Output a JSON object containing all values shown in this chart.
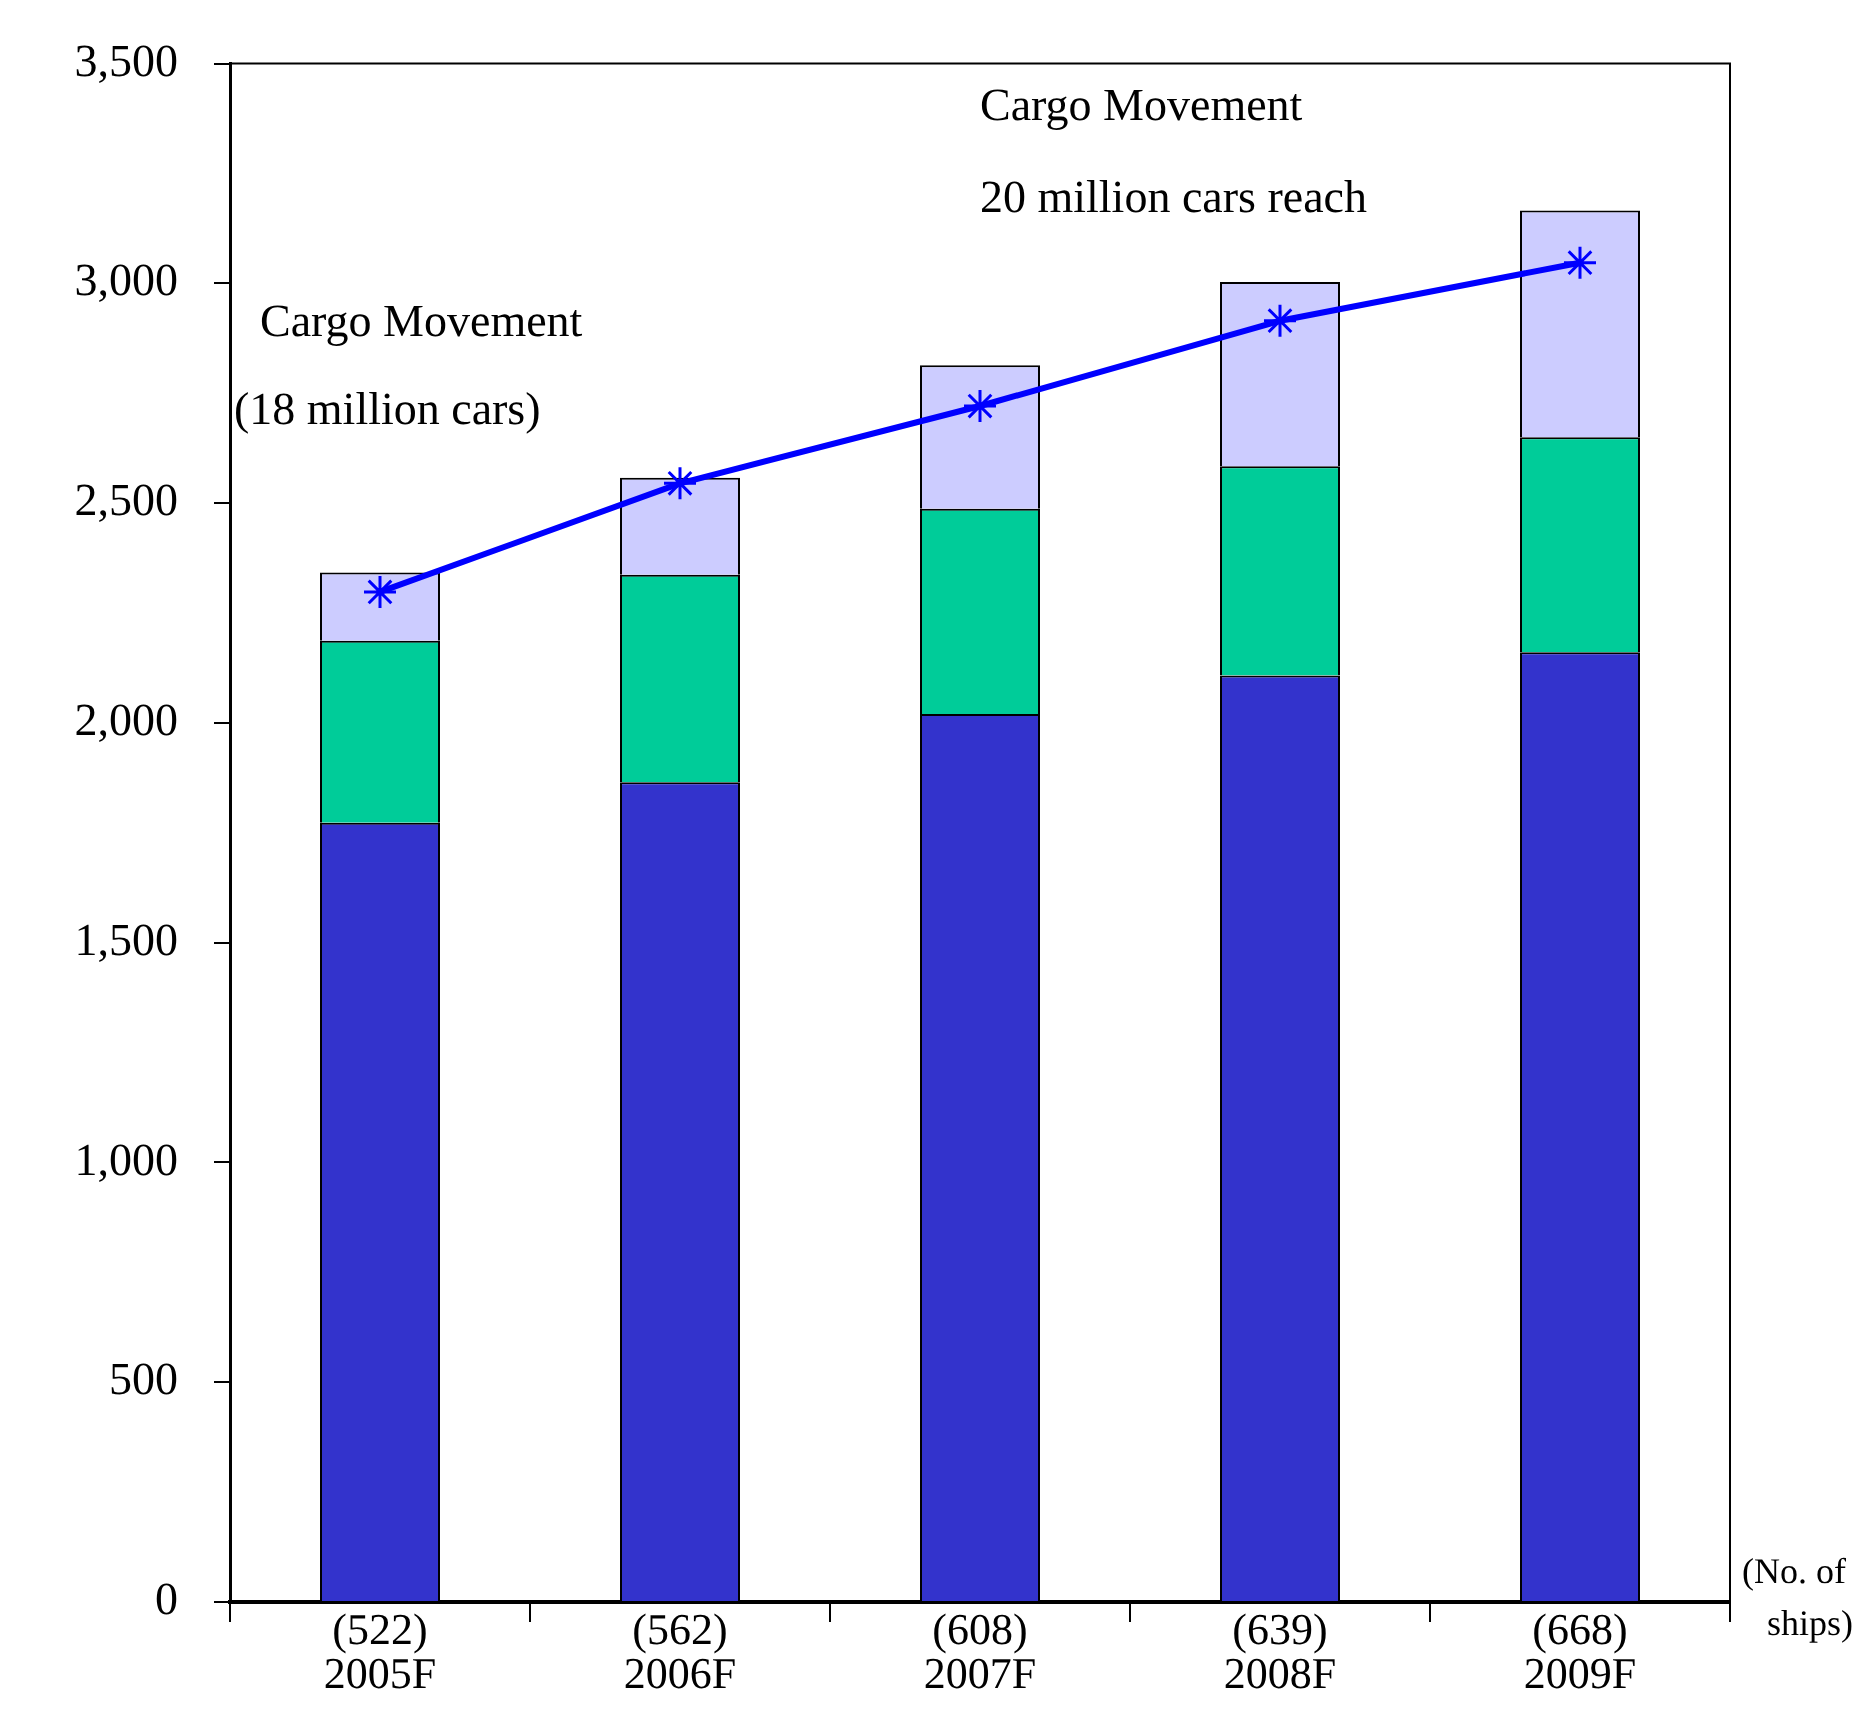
{
  "chart_data": {
    "type": "bar",
    "stacked": true,
    "categories": [
      "(522)\n2005F",
      "(562)\n2006F",
      "(608)\n2007F",
      "(639)\n2008F",
      "(668)\n2009F"
    ],
    "series": [
      {
        "color": "#3333cc",
        "values": [
          1773,
          1865,
          2020,
          2108,
          2161
        ]
      },
      {
        "color": "#00cc99",
        "values": [
          414,
          472,
          467,
          476,
          489
        ]
      },
      {
        "color": "#ccccff",
        "values": [
          155,
          221,
          327,
          419,
          516
        ]
      },
      {
        "type": "line",
        "color": "#0000ff",
        "values": [
          2298,
          2545,
          2721,
          2915,
          3047
        ],
        "marker": "cross",
        "line_style": "solid"
      }
    ],
    "ylim": [
      0,
      3500
    ],
    "yticks": [
      0,
      500,
      {
        "value": 1000,
        "label": "1,000"
      },
      {
        "value": 1500,
        "label": "1,500"
      },
      {
        "value": 2000,
        "label": "2,000"
      },
      {
        "value": 2500,
        "label": "2,500"
      },
      {
        "value": 3000,
        "label": "3,000"
      },
      {
        "value": 3500,
        "label": "3,500"
      }
    ],
    "grid": false,
    "legend": false,
    "annotations": [
      "Cargo Movement\n(18 million cars)",
      "Cargo Movement\n20 million cars reach",
      "(No. of\nships)"
    ]
  }
}
